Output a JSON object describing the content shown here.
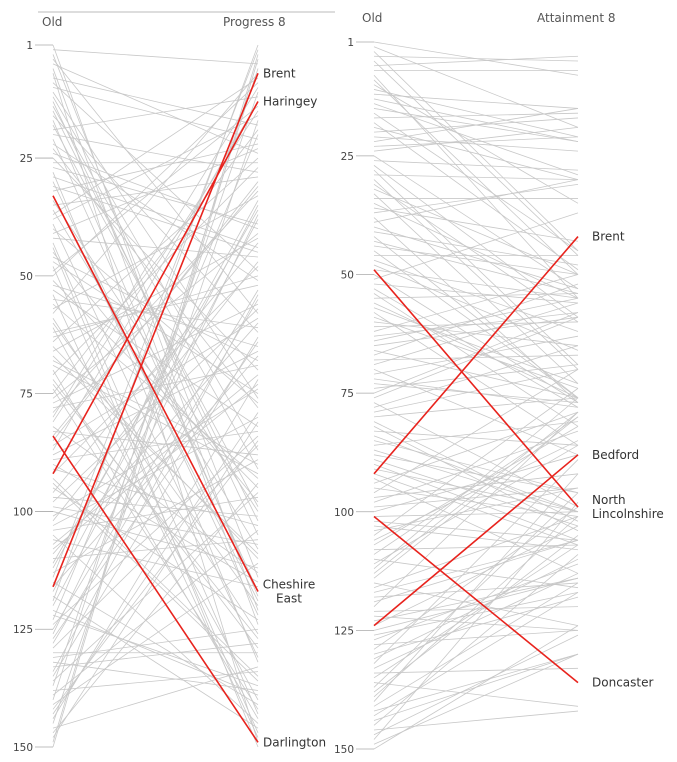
{
  "chart_data": [
    {
      "type": "slope",
      "left_label": "Old",
      "right_label": "Progress 8",
      "ylim": [
        1,
        150
      ],
      "y_inverted": true,
      "ticks": [
        1,
        25,
        50,
        75,
        100,
        125,
        150
      ],
      "background_color": "#c8c8c8",
      "highlight_color": "#e8231d",
      "highlighted": [
        {
          "name": "Brent",
          "from": 116,
          "to": 7
        },
        {
          "name": "Haringey",
          "from": 92,
          "to": 13
        },
        {
          "name": "Cheshire East",
          "from": 33,
          "to": 117,
          "label_lines": [
            "Cheshire",
            "East"
          ]
        },
        {
          "name": "Darlington",
          "from": 84,
          "to": 149
        }
      ]
    },
    {
      "type": "slope",
      "left_label": "Old",
      "right_label": "Attainment 8",
      "ylim": [
        1,
        150
      ],
      "y_inverted": true,
      "ticks": [
        1,
        25,
        50,
        75,
        100,
        125,
        150
      ],
      "background_color": "#c8c8c8",
      "highlight_color": "#e8231d",
      "highlighted": [
        {
          "name": "Brent",
          "from": 92,
          "to": 42
        },
        {
          "name": "Bedford",
          "from": 124,
          "to": 88
        },
        {
          "name": "North Lincolnshire",
          "from": 49,
          "to": 99,
          "label_lines": [
            "North",
            "Lincolnshire"
          ]
        },
        {
          "name": "Doncaster",
          "from": 101,
          "to": 136
        }
      ]
    }
  ]
}
